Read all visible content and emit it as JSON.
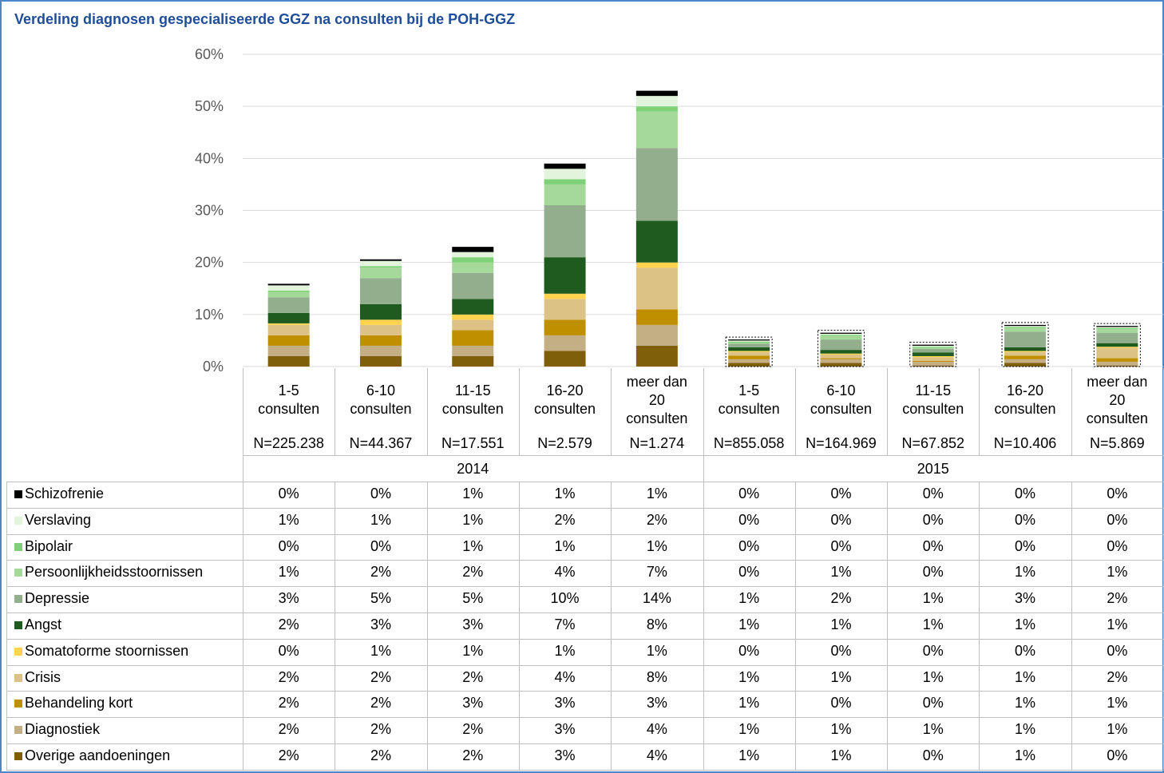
{
  "chart_data": {
    "type": "stacked_bar",
    "title": "Verdeling diagnosen gespecialiseerde GGZ na consulten bij de POH-GGZ",
    "categories": [
      "1-5 consulten",
      "6-10 consulten",
      "11-15 consulten",
      "16-20 consulten",
      "meer dan 20 consulten",
      "1-5 consulten",
      "6-10 consulten",
      "11-15 consulten",
      "16-20 consulten",
      "meer dan 20 consulten"
    ],
    "n_labels": [
      "N=225.238",
      "N=44.367",
      "N=17.551",
      "N=2.579",
      "N=1.274",
      "N=855.058",
      "N=164.969",
      "N=67.852",
      "N=10.406",
      "N=5.869"
    ],
    "groups": [
      "2014",
      "2015"
    ],
    "ylim": [
      0,
      60
    ],
    "yticks": [
      {
        "value": 0,
        "label": "0%"
      },
      {
        "value": 10,
        "label": "10%"
      },
      {
        "value": 20,
        "label": "20%"
      },
      {
        "value": 30,
        "label": "30%"
      },
      {
        "value": 40,
        "label": "40%"
      },
      {
        "value": 50,
        "label": "50%"
      },
      {
        "value": 60,
        "label": "60%"
      }
    ],
    "grid": true,
    "series": [
      {
        "name": "Schizofrenie",
        "color": "#000000",
        "values": [
          0.3,
          0.3,
          1,
          1,
          1,
          0.2,
          0.2,
          0.2,
          0.2,
          0.2
        ],
        "value_labels": [
          "0%",
          "0%",
          "1%",
          "1%",
          "1%",
          "0%",
          "0%",
          "0%",
          "0%",
          "0%"
        ]
      },
      {
        "name": "Verslaving",
        "color": "#e2f5dc",
        "values": [
          1,
          1,
          1,
          2,
          2,
          0.2,
          0.2,
          0.2,
          0.2,
          0.2
        ],
        "value_labels": [
          "1%",
          "1%",
          "1%",
          "2%",
          "2%",
          "0%",
          "0%",
          "0%",
          "0%",
          "0%"
        ]
      },
      {
        "name": "Bipolair",
        "color": "#7ed177",
        "values": [
          0.3,
          0.3,
          1,
          1,
          1,
          0.2,
          0.2,
          0.2,
          0.2,
          0.2
        ],
        "value_labels": [
          "0%",
          "0%",
          "1%",
          "1%",
          "1%",
          "0%",
          "0%",
          "0%",
          "0%",
          "0%"
        ]
      },
      {
        "name": "Persoonlijkheidsstoornissen",
        "color": "#a5d99a",
        "values": [
          1,
          2,
          2,
          4,
          7,
          0.2,
          0.7,
          0.2,
          0.7,
          0.7
        ],
        "value_labels": [
          "1%",
          "2%",
          "2%",
          "4%",
          "7%",
          "0%",
          "1%",
          "0%",
          "1%",
          "1%"
        ]
      },
      {
        "name": "Depressie",
        "color": "#92ae8c",
        "values": [
          3,
          5,
          5,
          10,
          14,
          0.7,
          2,
          0.7,
          3,
          2
        ],
        "value_labels": [
          "3%",
          "5%",
          "5%",
          "10%",
          "14%",
          "1%",
          "2%",
          "1%",
          "3%",
          "2%"
        ]
      },
      {
        "name": "Angst",
        "color": "#1f5a1e",
        "values": [
          2,
          3,
          3,
          7,
          8,
          0.7,
          0.7,
          0.7,
          0.7,
          0.7
        ],
        "value_labels": [
          "2%",
          "3%",
          "3%",
          "7%",
          "8%",
          "1%",
          "1%",
          "1%",
          "1%",
          "1%"
        ]
      },
      {
        "name": "Somatoforme stoornissen",
        "color": "#ffd34d",
        "values": [
          0.3,
          1,
          1,
          1,
          1,
          0.2,
          0.2,
          0.2,
          0.2,
          0.2
        ],
        "value_labels": [
          "0%",
          "1%",
          "1%",
          "1%",
          "1%",
          "0%",
          "0%",
          "0%",
          "0%",
          "0%"
        ]
      },
      {
        "name": "Crisis",
        "color": "#dcc285",
        "values": [
          2,
          2,
          2,
          4,
          8,
          0.7,
          0.7,
          0.7,
          0.7,
          2
        ],
        "value_labels": [
          "2%",
          "2%",
          "2%",
          "4%",
          "8%",
          "1%",
          "1%",
          "1%",
          "1%",
          "2%"
        ]
      },
      {
        "name": "Behandeling kort",
        "color": "#bf8f00",
        "values": [
          2,
          2,
          3,
          3,
          3,
          0.7,
          0.2,
          0.2,
          0.7,
          0.7
        ],
        "value_labels": [
          "2%",
          "2%",
          "3%",
          "3%",
          "3%",
          "1%",
          "0%",
          "0%",
          "1%",
          "1%"
        ]
      },
      {
        "name": "Diagnostiek",
        "color": "#c4ae84",
        "values": [
          2,
          2,
          2,
          3,
          4,
          0.7,
          0.7,
          0.7,
          0.7,
          0.7
        ],
        "value_labels": [
          "2%",
          "2%",
          "2%",
          "3%",
          "4%",
          "1%",
          "1%",
          "1%",
          "1%",
          "1%"
        ]
      },
      {
        "name": "Overige aandoeningen",
        "color": "#7f5f0a",
        "values": [
          2,
          2,
          2,
          3,
          4,
          0.7,
          0.7,
          0.2,
          0.7,
          0.2
        ],
        "value_labels": [
          "2%",
          "2%",
          "2%",
          "3%",
          "4%",
          "1%",
          "1%",
          "0%",
          "1%",
          "0%"
        ]
      }
    ]
  }
}
